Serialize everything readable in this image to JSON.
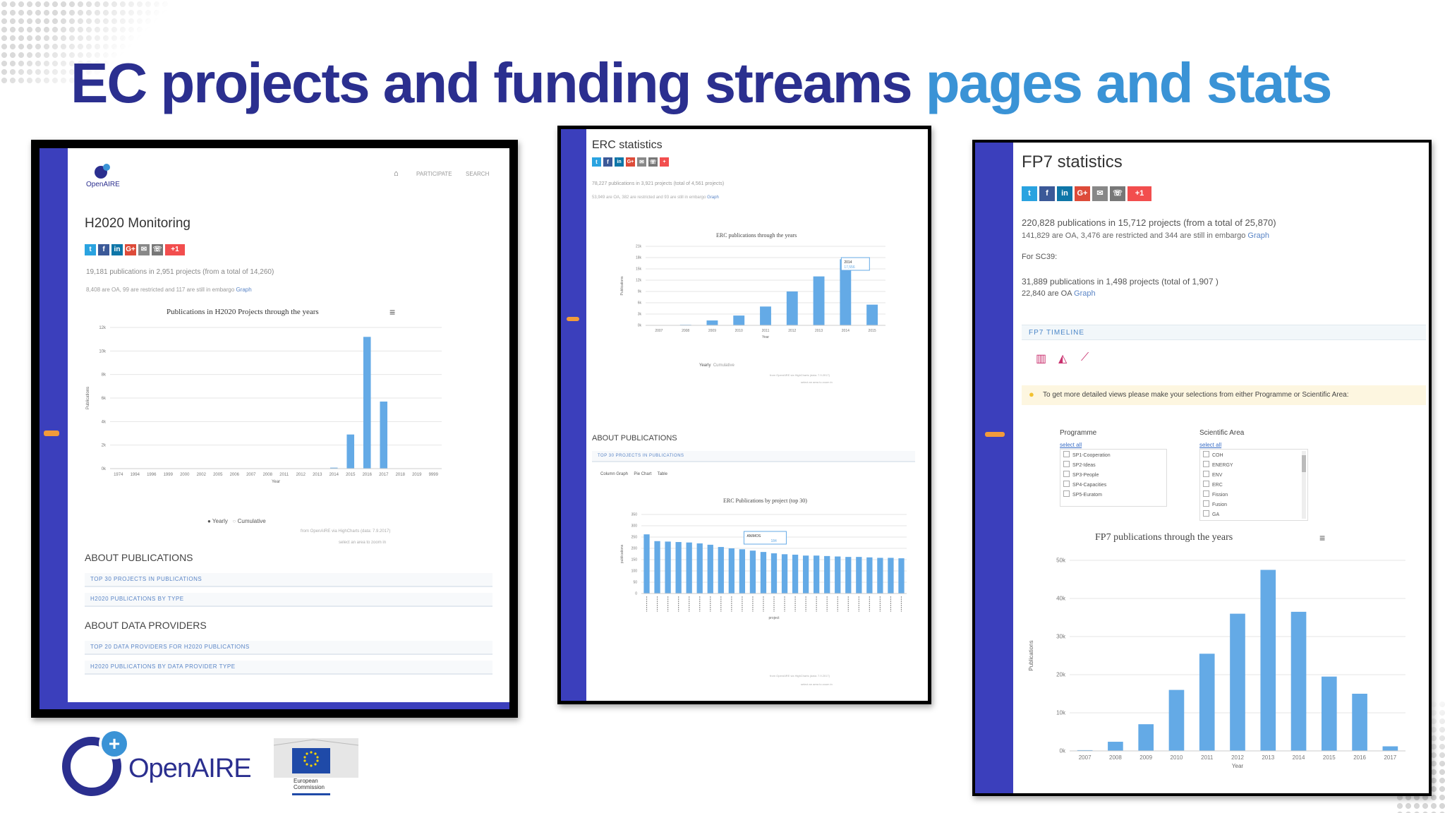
{
  "title": {
    "part1": "EC projects and funding streams",
    "part2": "pages and stats"
  },
  "colors": {
    "title_dark": "#2b2f8f",
    "title_light": "#3a93d6",
    "sidebar": "#3b3fbc",
    "bar": "#64aae6"
  },
  "share_icons": [
    "twitter-icon",
    "facebook-icon",
    "linkedin-icon",
    "googleplus-icon",
    "email-icon",
    "whatsapp-icon",
    "plus-icon"
  ],
  "share_labels": [
    "t",
    "f",
    "in",
    "G+",
    "✉",
    "☏",
    "+1"
  ],
  "panel1": {
    "logo_text": "OpenAIRE",
    "nav": [
      "PARTICIPATE",
      "SEARCH"
    ],
    "heading": "H2020 Monitoring",
    "stats_line1": "19,181 publications in 2,951 projects (from a total of 14,260)",
    "stats_line2": "8,408 are OA, 99 are restricted and 117 are still in embargo",
    "graph_link": "Graph",
    "chart_title": "Publications in H2020 Projects through the years",
    "legend": [
      "Yearly",
      "Cumulative"
    ],
    "credit": "from OpenAIRE via HighCharts (data: 7.9.2017)",
    "zoom_hint": "select an area to zoom in",
    "about_pubs": "ABOUT PUBLICATIONS",
    "pub_rows": [
      "TOP 30 PROJECTS IN PUBLICATIONS",
      "H2020 PUBLICATIONS BY TYPE"
    ],
    "about_dp": "ABOUT DATA PROVIDERS",
    "dp_rows": [
      "TOP 20 DATA PROVIDERS FOR H2020 PUBLICATIONS",
      "H2020 PUBLICATIONS BY DATA PROVIDER TYPE"
    ]
  },
  "panel2": {
    "heading": "ERC statistics",
    "stats_line1": "78,227 publications in 3,921 projects (total of 4,561 projects)",
    "stats_line2": "53,949 are OA, 382 are restricted and 93 are still in embargo",
    "graph_link": "Graph",
    "chart1_title": "ERC publications through the years",
    "legend": [
      "Yearly",
      "Cumulative"
    ],
    "tooltip_year": "2014",
    "tooltip_value": "17,556",
    "credit": "from OpenAIRE via HighCharts (data: 7.9.2017)",
    "zoom_hint": "select an area to zoom in",
    "about_pubs": "ABOUT PUBLICATIONS",
    "section_row": "TOP 30 PROJECTS IN PUBLICATIONS",
    "chart_tabs": [
      "Column Graph",
      "Pie Chart",
      "Table"
    ],
    "chart2_title": "ERC Publications by project (top 30)",
    "tooltip2_name": "ANIMOS",
    "tooltip2_value": "184",
    "x2_label": "project"
  },
  "panel3": {
    "heading": "FP7 statistics",
    "stats_line1": "220,828 publications in 15,712 projects (from a total of 25,870)",
    "stats_line2": "141,829 are OA, 3,476 are restricted and 344 are still in embargo",
    "graph_link": "Graph",
    "for_sc": "For SC39:",
    "sc_line1": "31,889 publications in 1,498 projects (total of 1,907 )",
    "sc_line2": "22,840 are OA",
    "timeline_label": "FP7 TIMELINE",
    "hint": "To get more detailed views please make your selections from either Programme or Scientific Area:",
    "programme_label": "Programme",
    "programme_select_all": "select all",
    "programmes": [
      "SP1-Cooperation",
      "SP2-Ideas",
      "SP3-People",
      "SP4-Capacities",
      "SP5-Euratom"
    ],
    "area_label": "Scientific Area",
    "area_select_all": "select all",
    "areas": [
      "COH",
      "ENERGY",
      "ENV",
      "ERC",
      "Fission",
      "Fusion",
      "GA"
    ],
    "chart_title": "FP7 publications through the years"
  },
  "footer": {
    "openaire_logo": "OpenAIRE",
    "ec_logo_line1": "European",
    "ec_logo_line2": "Commission"
  },
  "chart_data": [
    {
      "type": "bar",
      "title": "Publications in H2020 Projects through the years",
      "xlabel": "Year",
      "ylabel": "Publications",
      "categories": [
        "1974",
        "1994",
        "1996",
        "1999",
        "2000",
        "2002",
        "2005",
        "2006",
        "2007",
        "2008",
        "2011",
        "2012",
        "2013",
        "2014",
        "2015",
        "2016",
        "2017",
        "2018",
        "2019",
        "9999"
      ],
      "series": [
        {
          "name": "Yearly",
          "values": [
            0,
            0,
            0,
            0,
            0,
            0,
            0,
            0,
            0,
            0,
            0,
            0,
            0,
            80,
            2900,
            11200,
            5700,
            0,
            0,
            0
          ]
        }
      ],
      "ylim": [
        0,
        12000
      ],
      "yticks": [
        "0k",
        "2k",
        "4k",
        "6k",
        "8k",
        "10k",
        "12k"
      ],
      "grid": true,
      "legend": "bottom"
    },
    {
      "type": "bar",
      "title": "ERC publications through the years",
      "xlabel": "Year",
      "ylabel": "Publications",
      "categories": [
        "2007",
        "2008",
        "2009",
        "2010",
        "2011",
        "2012",
        "2013",
        "2014",
        "2015"
      ],
      "series": [
        {
          "name": "Yearly",
          "values": [
            0,
            150,
            1300,
            2600,
            5000,
            9000,
            13000,
            17556,
            5500
          ]
        }
      ],
      "ylim": [
        0,
        21000
      ],
      "yticks": [
        "0k",
        "3k",
        "6k",
        "9k",
        "12k",
        "15k",
        "18k",
        "21k"
      ],
      "grid": true,
      "legend": "bottom"
    },
    {
      "type": "bar",
      "title": "ERC Publications by project (top 30)",
      "xlabel": "project",
      "ylabel": "publications",
      "categories": [
        "Project 1",
        "Project 2",
        "Project 3",
        "Project 4",
        "Project 5",
        "Project 6",
        "Project 7",
        "Project 8",
        "Project 9",
        "Project 10",
        "Project 11",
        "Project 12",
        "Project 13",
        "Project 14",
        "Project 15",
        "Project 16",
        "Project 17",
        "Project 18",
        "Project 19",
        "Project 20",
        "Project 21",
        "Project 22",
        "Project 23",
        "Project 24",
        "Project 25"
      ],
      "series": [
        {
          "name": "publications",
          "values": [
            262,
            232,
            230,
            228,
            226,
            222,
            216,
            206,
            200,
            196,
            190,
            184,
            178,
            174,
            172,
            168,
            168,
            166,
            164,
            162,
            162,
            160,
            158,
            158,
            156
          ]
        }
      ],
      "ylim": [
        0,
        350
      ],
      "yticks": [
        "0",
        "50",
        "100",
        "150",
        "200",
        "250",
        "300",
        "350"
      ],
      "grid": true
    },
    {
      "type": "bar",
      "title": "FP7 publications through the years",
      "xlabel": "Year",
      "ylabel": "Publications",
      "categories": [
        "2007",
        "2008",
        "2009",
        "2010",
        "2011",
        "2012",
        "2013",
        "2014",
        "2015",
        "2016",
        "2017"
      ],
      "series": [
        {
          "name": "Yearly",
          "values": [
            200,
            2400,
            7000,
            16000,
            25500,
            36000,
            47500,
            36500,
            19500,
            15000,
            1200
          ]
        }
      ],
      "ylim": [
        0,
        50000
      ],
      "yticks": [
        "0k",
        "10k",
        "20k",
        "30k",
        "40k",
        "50k"
      ],
      "grid": true
    }
  ]
}
